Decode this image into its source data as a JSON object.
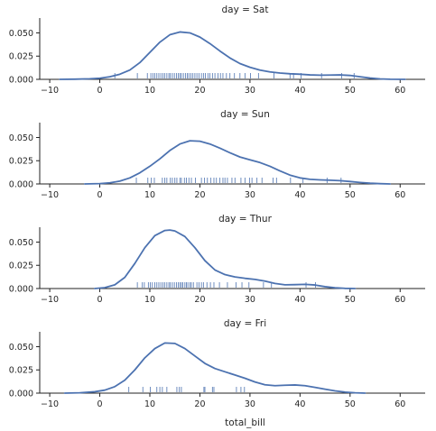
{
  "colors": {
    "series": "#4c72b0",
    "axis": "#222222",
    "text": "#262626"
  },
  "chart_data": {
    "type": "line",
    "description_kind": "faceted kde density with rug",
    "xlabel": "total_bill",
    "xlim": [
      -12,
      65
    ],
    "ylim": [
      0,
      0.066
    ],
    "x_ticks": [
      -10,
      0,
      10,
      20,
      30,
      40,
      50,
      60
    ],
    "y_ticks": [
      0.0,
      0.025,
      0.05
    ],
    "x_tick_labels": [
      "−10",
      "0",
      "10",
      "20",
      "30",
      "40",
      "50",
      "60"
    ],
    "y_tick_labels": [
      "0.000",
      "0.025",
      "0.050"
    ],
    "grid": false,
    "facets": [
      {
        "title": "day = Sat",
        "kde": {
          "x": [
            -8,
            -5,
            -2,
            0,
            2,
            4,
            6,
            8,
            10,
            12,
            14,
            16,
            18,
            20,
            22,
            24,
            26,
            28,
            30,
            32,
            34,
            36,
            38,
            40,
            42,
            44,
            46,
            48,
            50,
            52,
            54,
            56,
            58,
            61
          ],
          "y": [
            0.0,
            0.0002,
            0.0006,
            0.0012,
            0.0028,
            0.0055,
            0.01,
            0.018,
            0.029,
            0.04,
            0.048,
            0.051,
            0.05,
            0.0455,
            0.0385,
            0.0305,
            0.023,
            0.017,
            0.013,
            0.01,
            0.008,
            0.0068,
            0.006,
            0.0055,
            0.0048,
            0.0045,
            0.0046,
            0.0048,
            0.0042,
            0.0028,
            0.0014,
            0.0005,
            0.0001,
            0.0
          ]
        },
        "rug": [
          3,
          7.5,
          9.5,
          10.2,
          10.6,
          11.0,
          11.4,
          11.8,
          12.2,
          12.6,
          13.0,
          13.4,
          13.8,
          14.1,
          14.5,
          14.9,
          15.3,
          15.7,
          16.0,
          16.3,
          16.7,
          17.1,
          17.5,
          17.8,
          18.2,
          18.6,
          19.0,
          19.4,
          19.8,
          20.3,
          20.7,
          21.1,
          21.6,
          22.0,
          22.5,
          23.0,
          23.6,
          24.1,
          24.6,
          25.3,
          26.0,
          26.9,
          28.0,
          29.0,
          30.1,
          31.7,
          34.8,
          38.0,
          38.7,
          40.2,
          44.3,
          48.3,
          50.8
        ]
      },
      {
        "title": "day = Sun",
        "kde": {
          "x": [
            -3,
            0,
            2,
            4,
            6,
            8,
            10,
            12,
            14,
            16,
            18,
            20,
            22,
            24,
            26,
            28,
            30,
            32,
            34,
            36,
            38,
            40,
            42,
            44,
            46,
            48,
            50,
            52,
            54,
            56,
            58
          ],
          "y": [
            0.0,
            0.0004,
            0.0012,
            0.003,
            0.0065,
            0.012,
            0.019,
            0.027,
            0.036,
            0.043,
            0.0465,
            0.046,
            0.043,
            0.0385,
            0.0335,
            0.029,
            0.026,
            0.023,
            0.019,
            0.014,
            0.0095,
            0.0065,
            0.005,
            0.0044,
            0.004,
            0.0035,
            0.0026,
            0.0016,
            0.0008,
            0.0003,
            0.0
          ]
        },
        "rug": [
          7.3,
          9.6,
          10.3,
          10.9,
          12.5,
          13.0,
          13.4,
          14.1,
          14.5,
          15.0,
          15.4,
          16.0,
          16.3,
          16.9,
          17.3,
          17.8,
          18.3,
          19.1,
          20.3,
          20.9,
          21.5,
          22.2,
          22.8,
          23.3,
          24.0,
          24.6,
          25.0,
          25.5,
          26.4,
          27.0,
          28.2,
          29.0,
          29.9,
          30.4,
          31.4,
          32.4,
          34.6,
          35.3,
          38.1,
          40.6,
          45.4,
          48.2
        ]
      },
      {
        "title": "day = Thur",
        "kde": {
          "x": [
            -1,
            1,
            3,
            5,
            7,
            9,
            11,
            13,
            14,
            15,
            17,
            19,
            21,
            23,
            25,
            27,
            29,
            31,
            33,
            35,
            37,
            39,
            41,
            43,
            45,
            47,
            49,
            51
          ],
          "y": [
            0.0,
            0.001,
            0.004,
            0.012,
            0.027,
            0.044,
            0.057,
            0.0625,
            0.063,
            0.062,
            0.056,
            0.044,
            0.03,
            0.02,
            0.015,
            0.0125,
            0.011,
            0.0098,
            0.008,
            0.0055,
            0.004,
            0.0042,
            0.0045,
            0.0038,
            0.002,
            0.0008,
            0.0002,
            0.0
          ]
        },
        "rug": [
          7.5,
          8.5,
          8.9,
          9.7,
          10.1,
          10.5,
          11.0,
          11.4,
          11.8,
          12.2,
          12.6,
          13.0,
          13.4,
          13.8,
          14.1,
          14.5,
          14.9,
          15.3,
          15.7,
          16.0,
          16.3,
          16.6,
          17.0,
          17.3,
          17.6,
          18.0,
          18.3,
          18.7,
          19.4,
          19.8,
          20.3,
          20.7,
          21.4,
          22.1,
          22.8,
          23.9,
          25.5,
          27.2,
          28.4,
          29.8,
          32.7,
          34.3,
          41.2,
          43.1
        ]
      },
      {
        "title": "day = Fri",
        "kde": {
          "x": [
            -7,
            -4,
            -1,
            1,
            3,
            5,
            7,
            9,
            11,
            13,
            15,
            17,
            19,
            21,
            23,
            25,
            27,
            29,
            31,
            33,
            35,
            37,
            39,
            41,
            43,
            45,
            47,
            49,
            51,
            53
          ],
          "y": [
            0.0,
            0.0004,
            0.0015,
            0.0032,
            0.007,
            0.014,
            0.025,
            0.038,
            0.048,
            0.054,
            0.0535,
            0.048,
            0.04,
            0.032,
            0.0265,
            0.023,
            0.0195,
            0.016,
            0.012,
            0.009,
            0.008,
            0.0085,
            0.0088,
            0.008,
            0.0062,
            0.0042,
            0.0024,
            0.0011,
            0.0004,
            0.0
          ]
        },
        "rug": [
          5.8,
          8.6,
          10.1,
          11.4,
          12.0,
          12.5,
          13.4,
          15.4,
          15.9,
          16.3,
          20.8,
          21.0,
          22.5,
          22.8,
          27.3,
          28.2,
          28.9
        ]
      }
    ]
  }
}
